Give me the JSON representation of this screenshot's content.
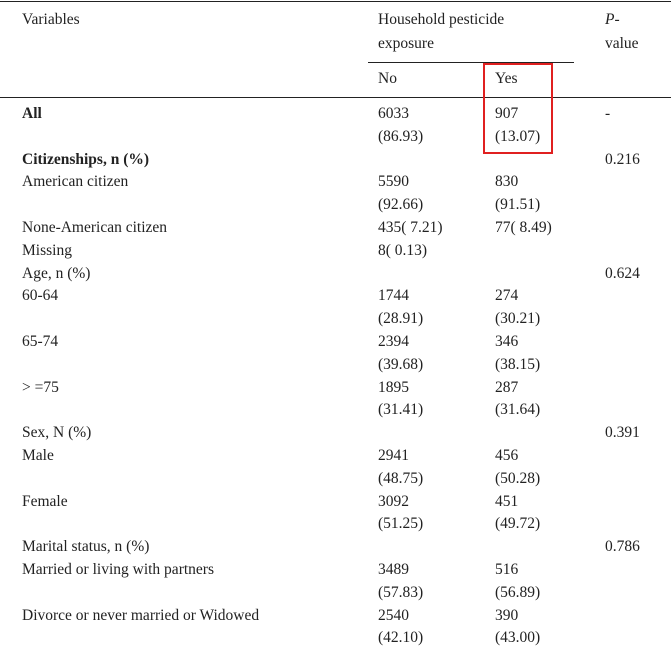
{
  "table": {
    "header": {
      "variables": "Variables",
      "exposure": [
        "Household pesticide",
        "exposure"
      ],
      "no": "No",
      "yes": "Yes",
      "p_value": [
        "P-",
        "value"
      ]
    },
    "rows": [
      {
        "label": "All",
        "bold": true,
        "no": [
          "6033",
          "(86.93)"
        ],
        "yes": [
          "907",
          "(13.07)"
        ],
        "p": "-"
      },
      {
        "label": "Citizenships, n (%)",
        "bold": true,
        "p": "0.216"
      },
      {
        "label": "American citizen",
        "no": [
          "5590",
          "(92.66)"
        ],
        "yes": [
          "830",
          "(91.51)"
        ]
      },
      {
        "label": "None-American citizen",
        "no": [
          "435( 7.21)"
        ],
        "yes": [
          "77( 8.49)"
        ]
      },
      {
        "label": "Missing",
        "no": [
          "8( 0.13)"
        ]
      },
      {
        "label": "Age, n (%)",
        "p": "0.624"
      },
      {
        "label": "60-64",
        "no": [
          "1744",
          "(28.91)"
        ],
        "yes": [
          "274",
          "(30.21)"
        ]
      },
      {
        "label": "65-74",
        "no": [
          "2394",
          "(39.68)"
        ],
        "yes": [
          "346",
          "(38.15)"
        ]
      },
      {
        "label": "> =75",
        "no": [
          "1895",
          "(31.41)"
        ],
        "yes": [
          "287",
          "(31.64)"
        ]
      },
      {
        "label": "Sex, N (%)",
        "p": "0.391"
      },
      {
        "label": "Male",
        "no": [
          "2941",
          "(48.75)"
        ],
        "yes": [
          "456",
          "(50.28)"
        ]
      },
      {
        "label": "Female",
        "no": [
          "3092",
          "(51.25)"
        ],
        "yes": [
          "451",
          "(49.72)"
        ]
      },
      {
        "label": "Marital status, n (%)",
        "p": "0.786"
      },
      {
        "label": "Married or living with partners",
        "no": [
          "3489",
          "(57.83)"
        ],
        "yes": [
          "516",
          "(56.89)"
        ]
      },
      {
        "label": "Divorce or never married or Widowed",
        "no": [
          "2540",
          "(42.10)"
        ],
        "yes": [
          "390",
          "(43.00)"
        ]
      }
    ]
  }
}
